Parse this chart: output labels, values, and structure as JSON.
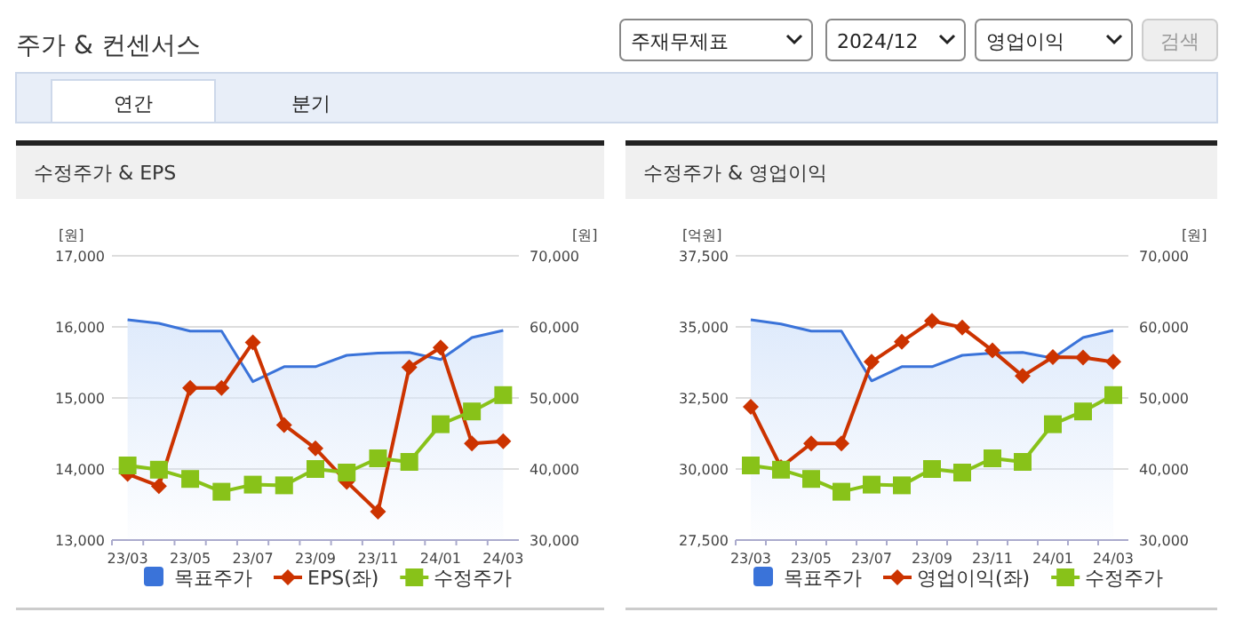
{
  "chart_data": [
    {
      "type": "line",
      "title": "수정주가 & EPS",
      "ylabel": "[원]",
      "y2label": "[원]",
      "annotations": [
        "주가 & 컨센서스",
        "주재무제표",
        "2024/12",
        "영업이익",
        "검색",
        "연간",
        "분기"
      ],
      "categories": [
        "23/03",
        null,
        "23/05",
        null,
        "23/07",
        null,
        "23/09",
        null,
        "23/11",
        null,
        "24/01",
        null,
        "24/03"
      ],
      "ylim": [
        13000,
        17000
      ],
      "yticks": [
        {
          "value": 13000,
          "label": "13,000"
        },
        {
          "value": 14000,
          "label": "14,000"
        },
        {
          "value": 15000,
          "label": "15,000"
        },
        {
          "value": 16000,
          "label": "16,000"
        },
        {
          "value": 17000,
          "label": "17,000"
        }
      ],
      "y2lim": [
        30000,
        70000
      ],
      "y2ticks": [
        {
          "value": 30000,
          "label": "30,000"
        },
        {
          "value": 40000,
          "label": "40,000"
        },
        {
          "value": 50000,
          "label": "50,000"
        },
        {
          "value": 60000,
          "label": "60,000"
        },
        {
          "value": 70000,
          "label": "70,000"
        }
      ],
      "grid": "y",
      "legend": "bottom",
      "series": [
        {
          "name": "목표주가",
          "type": "area",
          "axis": "y2",
          "color": "#3a73d9",
          "marker": "none",
          "values": [
            61000,
            60500,
            59400,
            59400,
            52300,
            54400,
            54400,
            56000,
            56300,
            56400,
            55400,
            58500,
            59500
          ]
        },
        {
          "name": "EPS(좌)",
          "type": "line",
          "color": "#cc3300",
          "marker": "diamond",
          "values": [
            13930,
            13760,
            15140,
            15140,
            15780,
            14620,
            14290,
            13820,
            13400,
            15430,
            15710,
            14360,
            14390
          ]
        },
        {
          "name": "수정주가",
          "type": "line",
          "axis": "y2",
          "color": "#88c219",
          "marker": "square",
          "values": [
            40500,
            39900,
            38600,
            36800,
            37800,
            37700,
            40000,
            39500,
            41500,
            41000,
            46300,
            48100,
            50400
          ]
        }
      ]
    },
    {
      "type": "line",
      "title": "수정주가 & 영업이익",
      "ylabel": "[억원]",
      "y2label": "[원]",
      "categories": [
        "23/03",
        null,
        "23/05",
        null,
        "23/07",
        null,
        "23/09",
        null,
        "23/11",
        null,
        "24/01",
        null,
        "24/03"
      ],
      "ylim": [
        27500,
        37500
      ],
      "yticks": [
        {
          "value": 27500,
          "label": "27,500"
        },
        {
          "value": 30000,
          "label": "30,000"
        },
        {
          "value": 32500,
          "label": "32,500"
        },
        {
          "value": 35000,
          "label": "35,000"
        },
        {
          "value": 37500,
          "label": "37,500"
        }
      ],
      "y2lim": [
        30000,
        70000
      ],
      "y2ticks": [
        {
          "value": 30000,
          "label": "30,000"
        },
        {
          "value": 40000,
          "label": "40,000"
        },
        {
          "value": 50000,
          "label": "50,000"
        },
        {
          "value": 60000,
          "label": "60,000"
        },
        {
          "value": 70000,
          "label": "70,000"
        }
      ],
      "grid": "y",
      "legend": "bottom",
      "series": [
        {
          "name": "목표주가",
          "type": "area",
          "axis": "y2",
          "color": "#3a73d9",
          "marker": "none",
          "values": [
            61000,
            60400,
            59400,
            59400,
            52400,
            54400,
            54400,
            56000,
            56300,
            56400,
            55600,
            58500,
            59500
          ]
        },
        {
          "name": "영업이익(좌)",
          "type": "line",
          "color": "#cc3300",
          "marker": "diamond",
          "values": [
            32190,
            30060,
            30900,
            30900,
            33770,
            34480,
            35210,
            34980,
            34170,
            33270,
            33940,
            33920,
            33770
          ]
        },
        {
          "name": "수정주가",
          "type": "line",
          "axis": "y2",
          "color": "#88c219",
          "marker": "square",
          "values": [
            40500,
            39900,
            38600,
            36800,
            37800,
            37700,
            40000,
            39500,
            41500,
            41000,
            46300,
            48100,
            50400
          ]
        }
      ]
    }
  ]
}
